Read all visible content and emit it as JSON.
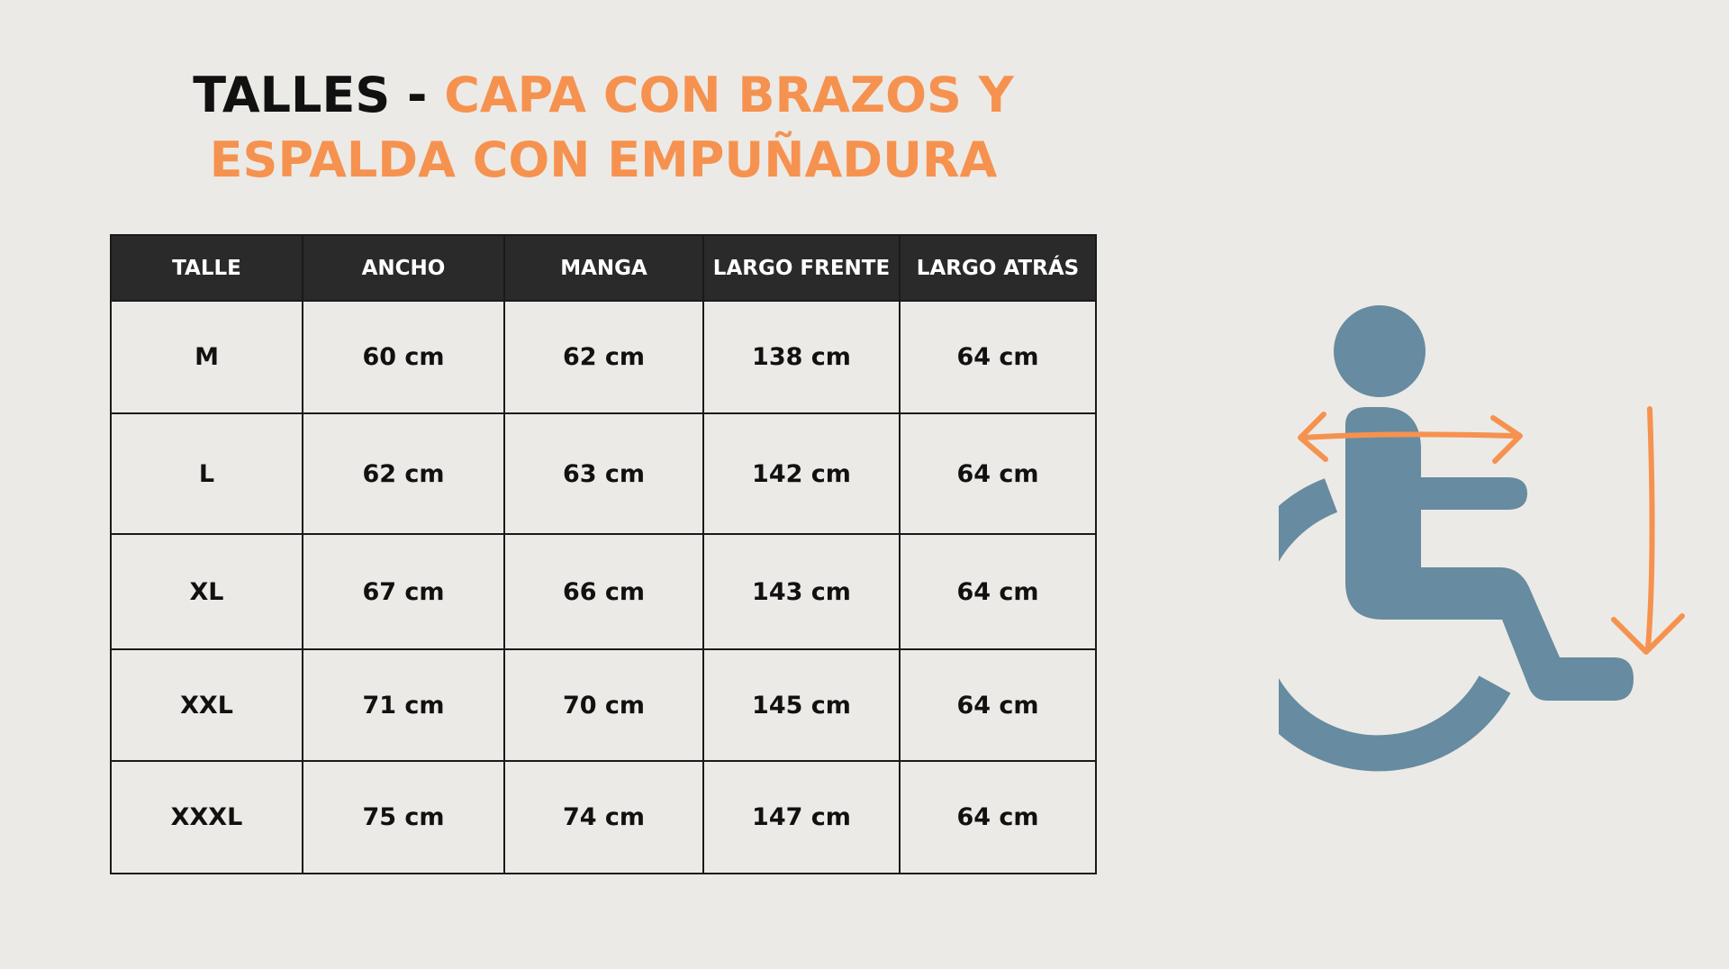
{
  "title": {
    "part_black": "TALLES - ",
    "part_orange_line1": "CAPA CON BRAZOS Y",
    "part_orange_line2": "ESPALDA CON EMPUÑADURA"
  },
  "table": {
    "headers": [
      "TALLE",
      "ANCHO",
      "MANGA",
      "LARGO FRENTE",
      "LARGO ATRÁS"
    ],
    "rows": [
      [
        "M",
        "60 cm",
        "62 cm",
        "138 cm",
        "64 cm"
      ],
      [
        "L",
        "62 cm",
        "63 cm",
        "142 cm",
        "64 cm"
      ],
      [
        "XL",
        "67 cm",
        "66 cm",
        "143 cm",
        "64 cm"
      ],
      [
        "XXL",
        "71 cm",
        "70 cm",
        "145 cm",
        "64 cm"
      ],
      [
        "XXXL",
        "75 cm",
        "74 cm",
        "147 cm",
        "64 cm"
      ]
    ]
  },
  "illustration": {
    "icon": "wheelchair-user-icon",
    "figure_color": "#678BA0",
    "arrow_color": "#F6924F"
  },
  "colors": {
    "background": "#ECEAE6",
    "header_bg": "#2A2A2A",
    "accent": "#F6924F"
  }
}
